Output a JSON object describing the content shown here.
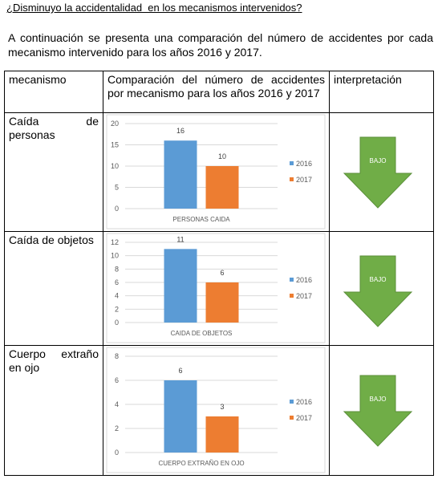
{
  "heading": "¿Disminuyo la accidentalidad  en los mecanismos intervenidos?",
  "intro": [
    "A continuación se presenta una comparación del número de accidentes por cada",
    "mecanismo intervenido para los años 2016 y 2017."
  ],
  "table": {
    "header": [
      "mecanismo",
      "Comparación del número de accidentes por mecanismo para los años 2016 y 2017",
      "interpretación"
    ],
    "rows": [
      {
        "mecanismo": "Caída de personas",
        "chart": {
          "type": "bar",
          "categories": [
            "PERSONAS CAIDA"
          ],
          "series": [
            {
              "name": "2016",
              "color": "#5b9bd5",
              "values": [
                16
              ]
            },
            {
              "name": "2017",
              "color": "#ed7d31",
              "values": [
                10
              ]
            }
          ],
          "ylim": [
            0,
            20
          ],
          "yticks": [
            0,
            5,
            10,
            15,
            20
          ],
          "grid": true
        },
        "interpretacion": "BAJO"
      },
      {
        "mecanismo": "Caída de objetos",
        "chart": {
          "type": "bar",
          "categories": [
            "CAIDA DE OBJETOS"
          ],
          "series": [
            {
              "name": "2016",
              "color": "#5b9bd5",
              "values": [
                11
              ]
            },
            {
              "name": "2017",
              "color": "#ed7d31",
              "values": [
                6
              ]
            }
          ],
          "ylim": [
            0,
            12
          ],
          "yticks": [
            0,
            2,
            4,
            6,
            8,
            10,
            12
          ],
          "grid": true
        },
        "interpretacion": "BAJO"
      },
      {
        "mecanismo": "Cuerpo extraño en ojo",
        "chart": {
          "type": "bar",
          "categories": [
            "CUERPO EXTRAÑO EN OJO"
          ],
          "series": [
            {
              "name": "2016",
              "color": "#5b9bd5",
              "values": [
                6
              ]
            },
            {
              "name": "2017",
              "color": "#ed7d31",
              "values": [
                3
              ]
            }
          ],
          "ylim": [
            0,
            8
          ],
          "yticks": [
            0,
            2,
            4,
            6,
            8
          ],
          "grid": true
        },
        "interpretacion": "BAJO"
      }
    ]
  }
}
